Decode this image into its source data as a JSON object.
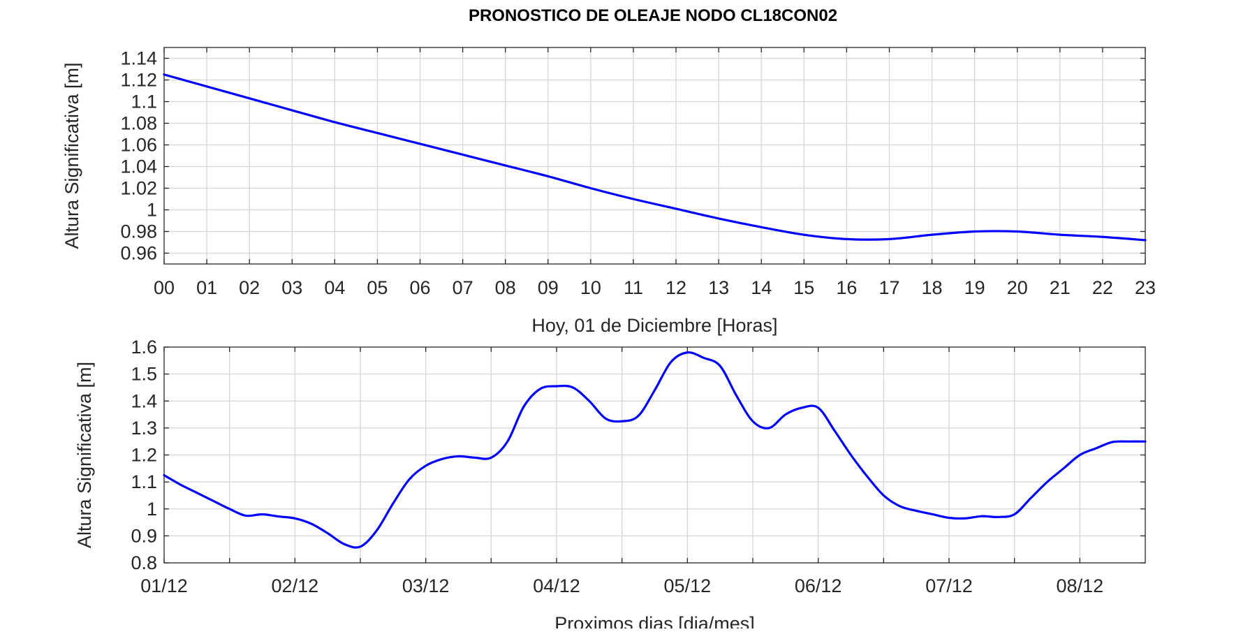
{
  "title": "PRONOSTICO DE OLEAJE NODO CL18CON02",
  "line_color": "#0000ff",
  "chart_data": [
    {
      "type": "line",
      "title": "PRONOSTICO DE OLEAJE NODO CL18CON02",
      "xlabel": "Hoy, 01 de  Diciembre  [Horas]",
      "ylabel": "Altura Significativa [m]",
      "xlim": [
        0,
        23
      ],
      "ylim": [
        0.95,
        1.15
      ],
      "xticks": [
        0,
        1,
        2,
        3,
        4,
        5,
        6,
        7,
        8,
        9,
        10,
        11,
        12,
        13,
        14,
        15,
        16,
        17,
        18,
        19,
        20,
        21,
        22,
        23
      ],
      "xtick_labels": [
        "00",
        "01",
        "02",
        "03",
        "04",
        "05",
        "06",
        "07",
        "08",
        "09",
        "10",
        "11",
        "12",
        "13",
        "14",
        "15",
        "16",
        "17",
        "18",
        "19",
        "20",
        "21",
        "22",
        "23"
      ],
      "yticks": [
        0.96,
        0.98,
        1.0,
        1.02,
        1.04,
        1.06,
        1.08,
        1.1,
        1.12,
        1.14
      ],
      "ytick_labels": [
        "0.96",
        "0.98",
        "1",
        "1.02",
        "1.04",
        "1.06",
        "1.08",
        "1.1",
        "1.12",
        "1.14"
      ],
      "grid": true,
      "series": [
        {
          "x": [
            0,
            1,
            2,
            3,
            4,
            5,
            6,
            7,
            8,
            9,
            10,
            11,
            12,
            13,
            14,
            15,
            16,
            17,
            18,
            19,
            20,
            21,
            22,
            23
          ],
          "values": [
            1.125,
            1.114,
            1.103,
            1.092,
            1.081,
            1.071,
            1.061,
            1.051,
            1.041,
            1.031,
            1.02,
            1.01,
            1.001,
            0.992,
            0.984,
            0.977,
            0.973,
            0.973,
            0.977,
            0.98,
            0.98,
            0.977,
            0.975,
            0.972
          ]
        }
      ]
    },
    {
      "type": "line",
      "xlabel": "Proximos dias [dia/mes]",
      "ylabel": "Altura Significativa [m]",
      "xlim": [
        0,
        7.5
      ],
      "ylim": [
        0.8,
        1.6
      ],
      "xticks": [
        0,
        1,
        2,
        3,
        4,
        5,
        6,
        7
      ],
      "xtick_labels": [
        "01/12",
        "02/12",
        "03/12",
        "04/12",
        "05/12",
        "06/12",
        "07/12",
        "08/12"
      ],
      "yticks": [
        0.8,
        0.9,
        1.0,
        1.1,
        1.2,
        1.3,
        1.4,
        1.5,
        1.6
      ],
      "ytick_labels": [
        "0.8",
        "0.9",
        "1",
        "1.1",
        "1.2",
        "1.3",
        "1.4",
        "1.5",
        "1.6"
      ],
      "grid": true,
      "series": [
        {
          "x": [
            0,
            0.125,
            0.25,
            0.375,
            0.5,
            0.625,
            0.75,
            0.875,
            1.0,
            1.125,
            1.25,
            1.375,
            1.5,
            1.625,
            1.75,
            1.875,
            2.0,
            2.125,
            2.25,
            2.375,
            2.5,
            2.625,
            2.75,
            2.875,
            3.0,
            3.125,
            3.25,
            3.375,
            3.5,
            3.625,
            3.75,
            3.875,
            4.0,
            4.125,
            4.25,
            4.375,
            4.5,
            4.625,
            4.75,
            4.875,
            5.0,
            5.125,
            5.25,
            5.375,
            5.5,
            5.625,
            5.75,
            5.875,
            6.0,
            6.125,
            6.25,
            6.375,
            6.5,
            6.625,
            6.75,
            6.875,
            7.0,
            7.125,
            7.25,
            7.375,
            7.5
          ],
          "values": [
            1.125,
            1.09,
            1.06,
            1.03,
            1.0,
            0.975,
            0.98,
            0.972,
            0.965,
            0.945,
            0.91,
            0.87,
            0.86,
            0.92,
            1.02,
            1.11,
            1.16,
            1.185,
            1.195,
            1.19,
            1.19,
            1.25,
            1.38,
            1.445,
            1.455,
            1.45,
            1.4,
            1.335,
            1.325,
            1.345,
            1.44,
            1.545,
            1.58,
            1.56,
            1.53,
            1.42,
            1.325,
            1.3,
            1.35,
            1.375,
            1.375,
            1.29,
            1.2,
            1.12,
            1.05,
            1.01,
            0.993,
            0.98,
            0.967,
            0.965,
            0.973,
            0.97,
            0.98,
            1.04,
            1.1,
            1.15,
            1.2,
            1.225,
            1.248,
            1.25,
            1.25
          ]
        }
      ]
    }
  ]
}
